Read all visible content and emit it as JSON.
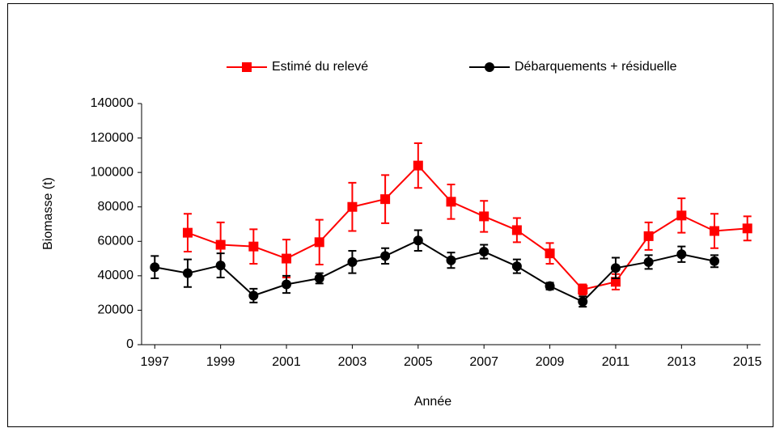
{
  "chart_data": {
    "type": "line",
    "x_label": "Année",
    "y_label": "Biomasse  (t)",
    "xlim": [
      1996.6,
      2015.4
    ],
    "xticks": [
      1997,
      1999,
      2001,
      2003,
      2005,
      2007,
      2009,
      2011,
      2013,
      2015
    ],
    "ylim": [
      0,
      140000
    ],
    "yticks": [
      0,
      20000,
      40000,
      60000,
      80000,
      100000,
      120000,
      140000
    ],
    "legend": "top",
    "series": [
      {
        "name": "Estimé du relevé",
        "color": "#ff0000",
        "marker": "square",
        "x": [
          1998,
          1999,
          2000,
          2001,
          2002,
          2003,
          2004,
          2005,
          2006,
          2007,
          2008,
          2009,
          2010,
          2011,
          2012,
          2013,
          2014,
          2015
        ],
        "values": [
          65000,
          58000,
          57000,
          50000,
          59500,
          80000,
          84500,
          104000,
          83000,
          74500,
          66500,
          53000,
          32000,
          36500,
          63000,
          75000,
          66000,
          67500
        ],
        "errors": [
          11000,
          13000,
          10000,
          11000,
          13000,
          14000,
          14000,
          13000,
          10000,
          9000,
          7000,
          6000,
          3000,
          4500,
          8000,
          10000,
          10000,
          7000
        ]
      },
      {
        "name": "Débarquements + résiduelle",
        "color": "#000000",
        "marker": "circle",
        "x": [
          1997,
          1998,
          1999,
          2000,
          2001,
          2002,
          2003,
          2004,
          2005,
          2006,
          2007,
          2008,
          2009,
          2010,
          2011,
          2012,
          2013,
          2014
        ],
        "values": [
          45000,
          41500,
          46000,
          28500,
          35000,
          38500,
          48000,
          51500,
          60500,
          49000,
          54000,
          45500,
          34000,
          25000,
          44500,
          48000,
          52500,
          48500
        ],
        "errors": [
          6500,
          8000,
          7000,
          4000,
          5000,
          3000,
          6500,
          4500,
          6000,
          4500,
          4000,
          4000,
          2000,
          3000,
          6000,
          4000,
          4500,
          3500
        ]
      }
    ]
  }
}
